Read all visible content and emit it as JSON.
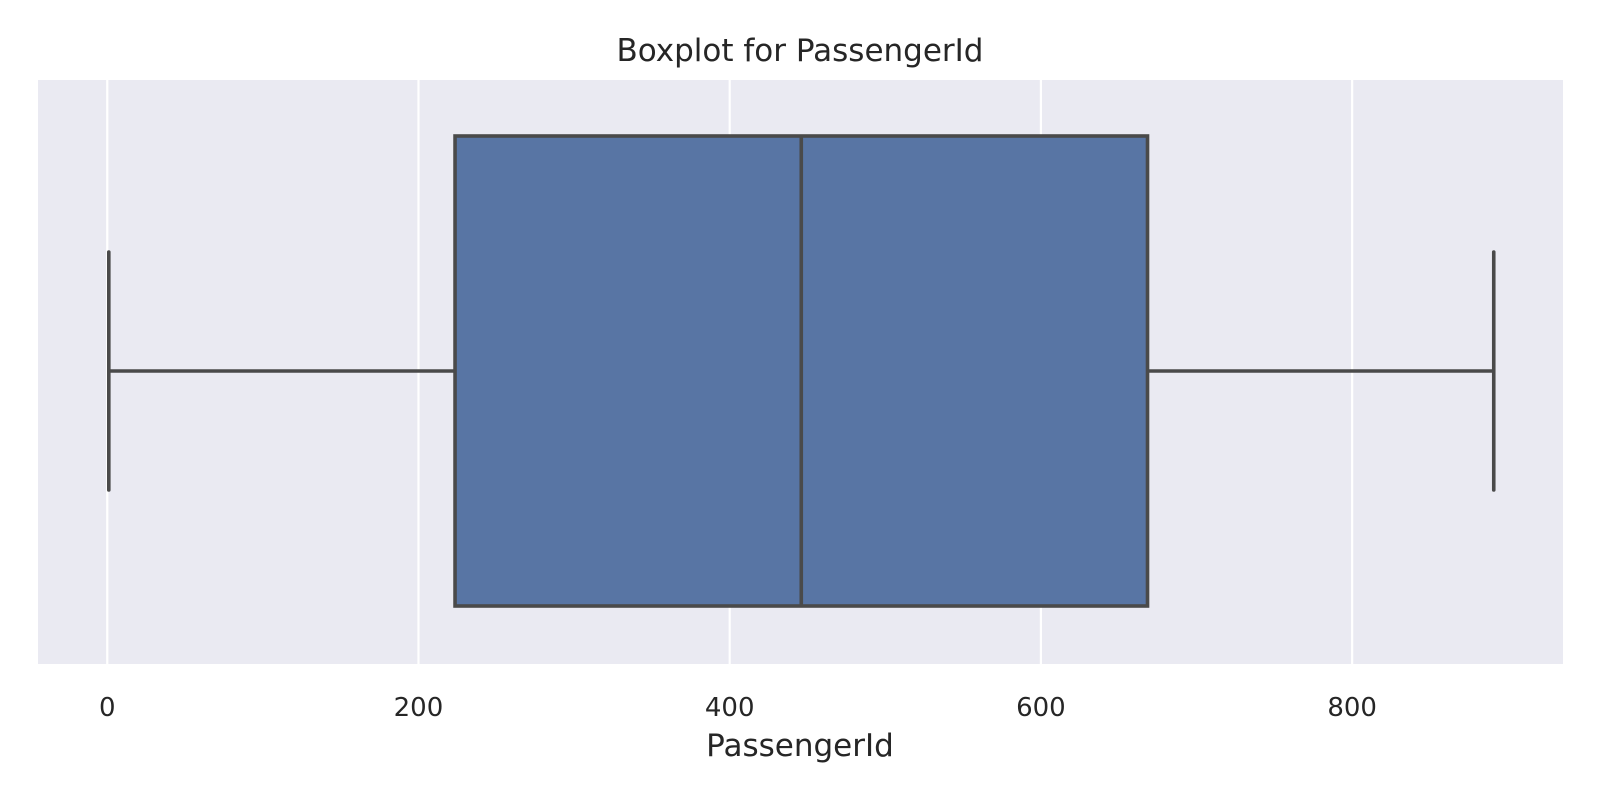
{
  "chart_data": {
    "type": "boxplot",
    "title": "Boxplot for PassengerId",
    "xlabel": "PassengerId",
    "ylabel": "",
    "xlim": [
      -44.5,
      935.5
    ],
    "xticks": [
      0,
      200,
      400,
      600,
      800
    ],
    "orientation": "horizontal",
    "grid": true,
    "boxes": [
      {
        "whisker_low": 1,
        "q1": 223.5,
        "median": 446,
        "q3": 668.5,
        "whisker_high": 891
      }
    ],
    "colors": {
      "plot_background": "#eaeaf2",
      "box_fill": "#5875a4",
      "line": "#4a4a4a",
      "grid": "#ffffff"
    }
  }
}
